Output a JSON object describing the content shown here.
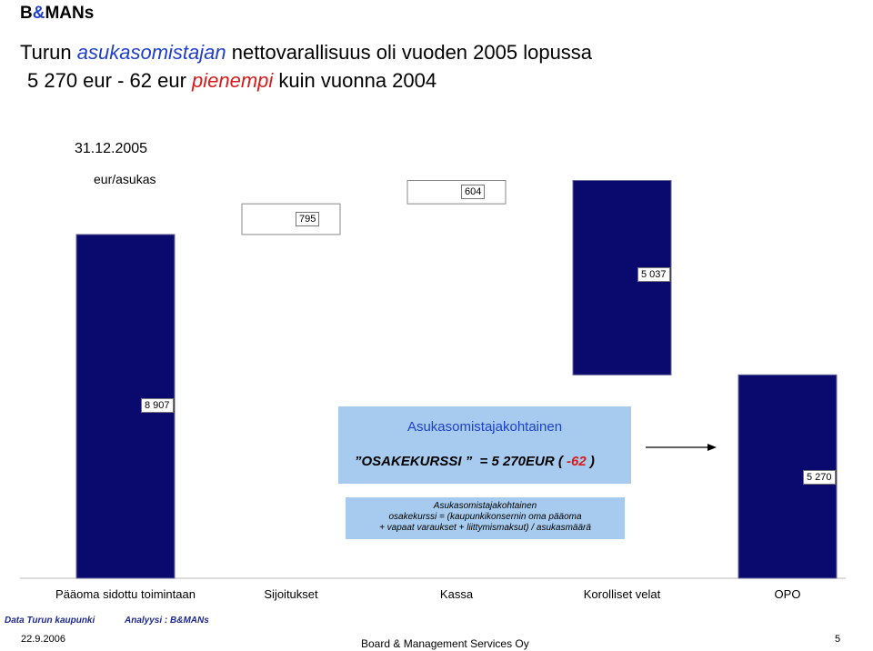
{
  "brand": {
    "b": "B",
    "amp": "&",
    "rest": "MANs"
  },
  "title": {
    "line1_a": "Turun ",
    "line1_hl": "asukasomistajan",
    "line1_b": " nettovarallisuus oli vuoden 2005 lopussa",
    "line2_a": "5 270 eur - 62 eur ",
    "line2_red": "pienempi",
    "line2_b": " kuin vuonna 2004"
  },
  "date": "31.12.2005",
  "unit": "eur/asukas",
  "chart_data": {
    "type": "bar",
    "categories": [
      "Pääoma sidottu toimintaan",
      "Sijoitukset",
      "Kassa",
      "Korolliset velat",
      "OPO"
    ],
    "values": [
      8907,
      795,
      604,
      -5037,
      5270
    ],
    "data_labels": [
      "8 907",
      "795",
      "604",
      "5 037",
      "5 270"
    ],
    "colors": {
      "bar": "#0a0a6e",
      "increment": "#ffffff",
      "accent": "#1f3fcc",
      "negative": "#d81b1b"
    }
  },
  "box1": {
    "line1": "Asukasomistajakohtainen",
    "lbl": "OSAKEKURSSI",
    "eq": "= 5 270EUR (",
    "neg": "-62",
    "close": ")"
  },
  "box2": {
    "line1": "Asukasomistajakohtainen",
    "line2": "osakekurssi = (kaupunkikonsernin oma pääoma",
    "line3": "+ vapaat varaukset + liittymismaksut) / asukasmäärä"
  },
  "footer": {
    "data": "Data Turun kaupunki",
    "analysis": "Analyysi : B&MANs",
    "date": "22.9.2006",
    "company": "Board & Management Services Oy",
    "page": "5"
  }
}
